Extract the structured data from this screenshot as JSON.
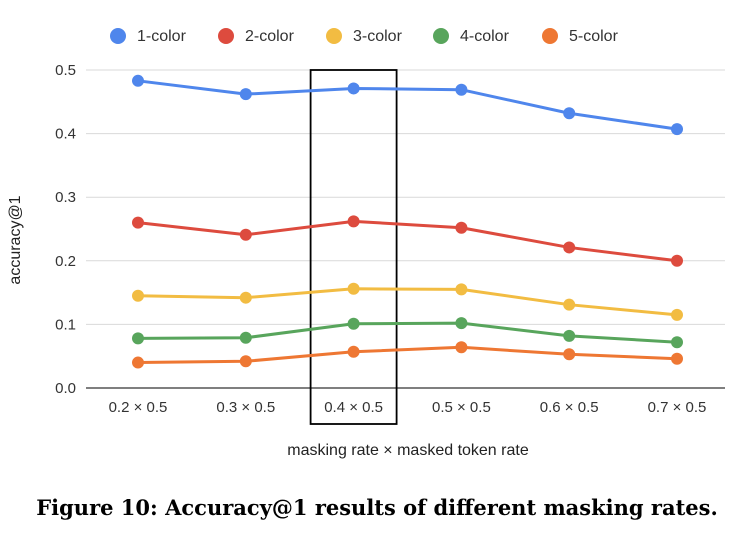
{
  "chart_data": {
    "type": "line",
    "title": "",
    "xlabel": "masking rate × masked token rate",
    "ylabel": "accuracy@1",
    "categories": [
      "0.2 × 0.5",
      "0.3 × 0.5",
      "0.4 × 0.5",
      "0.5 × 0.5",
      "0.6 × 0.5",
      "0.7 × 0.5"
    ],
    "ylim": [
      0.0,
      0.5
    ],
    "yticks": [
      "0.0",
      "0.1",
      "0.2",
      "0.3",
      "0.4",
      "0.5"
    ],
    "grid": true,
    "legend_position": "top",
    "highlighted_category": "0.4 × 0.5",
    "series": [
      {
        "name": "1-color",
        "color": "#4f86ec",
        "values": [
          0.483,
          0.462,
          0.471,
          0.469,
          0.432,
          0.407
        ]
      },
      {
        "name": "2-color",
        "color": "#dd4b3e",
        "values": [
          0.26,
          0.241,
          0.262,
          0.252,
          0.221,
          0.2
        ]
      },
      {
        "name": "3-color",
        "color": "#f2bc42",
        "values": [
          0.145,
          0.142,
          0.156,
          0.155,
          0.131,
          0.115
        ]
      },
      {
        "name": "4-color",
        "color": "#58a55c",
        "values": [
          0.078,
          0.079,
          0.101,
          0.102,
          0.082,
          0.072
        ]
      },
      {
        "name": "5-color",
        "color": "#ee7733",
        "values": [
          0.04,
          0.042,
          0.057,
          0.064,
          0.053,
          0.046
        ]
      }
    ]
  },
  "caption": "Figure 10: Accuracy@1 results of different masking rates."
}
